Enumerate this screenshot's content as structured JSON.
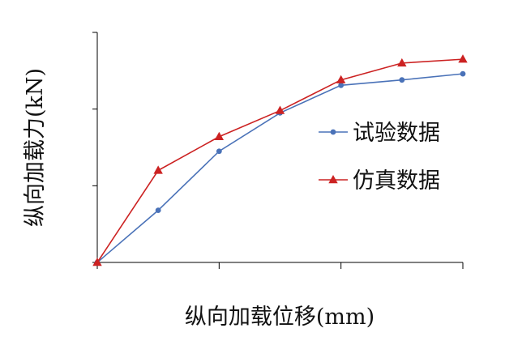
{
  "chart_data": {
    "type": "line",
    "title": "",
    "xlabel": "纵向加载位移(mm)",
    "ylabel": "纵向加载力(kN)",
    "x": [
      0,
      1,
      2,
      3,
      4,
      5,
      6
    ],
    "xlim": [
      0,
      6
    ],
    "ylim": [
      0,
      3
    ],
    "x_tick_labels_shown": false,
    "y_tick_labels_shown": false,
    "grid": false,
    "legend_position": "right",
    "series": [
      {
        "name": "试验数据",
        "values": [
          0,
          0.68,
          1.45,
          1.95,
          2.31,
          2.38,
          2.46
        ],
        "color": "#4a72b8",
        "marker": "circle"
      },
      {
        "name": "仿真数据",
        "values": [
          0,
          1.2,
          1.64,
          1.98,
          2.38,
          2.6,
          2.65
        ],
        "color": "#cc2222",
        "marker": "triangle"
      }
    ]
  }
}
